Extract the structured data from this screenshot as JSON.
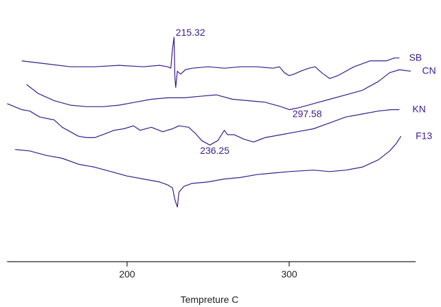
{
  "chart_data": {
    "type": "line",
    "title": "",
    "xlabel": "Tempreture C",
    "ylabel": "",
    "xlim": [
      126,
      378
    ],
    "x_ticks": [
      200,
      300
    ],
    "y_axis_shown": false,
    "grid": false,
    "line_color": "#3a1a8c",
    "axis_color": "#222222",
    "series": [
      {
        "name": "SB",
        "label_at_x": 374,
        "points": [
          [
            135,
            7.6
          ],
          [
            150,
            7.4
          ],
          [
            165,
            7.2
          ],
          [
            180,
            7.2
          ],
          [
            195,
            7.3
          ],
          [
            210,
            7.2
          ],
          [
            220,
            7.3
          ],
          [
            225,
            7.2
          ],
          [
            227,
            7.1
          ],
          [
            228,
            8.4
          ],
          [
            229,
            9.2
          ],
          [
            229.5,
            6.5
          ],
          [
            230,
            5.8
          ],
          [
            231,
            6.9
          ],
          [
            233,
            6.7
          ],
          [
            236,
            7.0
          ],
          [
            240,
            7.1
          ],
          [
            250,
            7.2
          ],
          [
            260,
            7.1
          ],
          [
            270,
            7.2
          ],
          [
            280,
            7.2
          ],
          [
            290,
            7.1
          ],
          [
            294,
            7.2
          ],
          [
            297,
            6.8
          ],
          [
            300,
            6.6
          ],
          [
            303,
            6.7
          ],
          [
            307,
            6.9
          ],
          [
            312,
            7.1
          ],
          [
            316,
            7.2
          ],
          [
            320,
            6.8
          ],
          [
            325,
            6.4
          ],
          [
            330,
            6.6
          ],
          [
            340,
            7.2
          ],
          [
            350,
            7.6
          ],
          [
            360,
            7.6
          ],
          [
            365,
            7.8
          ],
          [
            368,
            7.8
          ]
        ]
      },
      {
        "name": "CN",
        "label_at_x": 382,
        "points": [
          [
            138,
            6.0
          ],
          [
            145,
            5.4
          ],
          [
            155,
            4.9
          ],
          [
            165,
            4.6
          ],
          [
            175,
            4.5
          ],
          [
            185,
            4.5
          ],
          [
            195,
            4.6
          ],
          [
            205,
            4.8
          ],
          [
            215,
            5.0
          ],
          [
            225,
            5.1
          ],
          [
            235,
            5.1
          ],
          [
            245,
            5.2
          ],
          [
            255,
            5.3
          ],
          [
            265,
            5.0
          ],
          [
            275,
            4.9
          ],
          [
            285,
            4.8
          ],
          [
            295,
            4.5
          ],
          [
            300,
            4.3
          ],
          [
            305,
            4.4
          ],
          [
            315,
            4.7
          ],
          [
            325,
            5.0
          ],
          [
            335,
            5.3
          ],
          [
            345,
            5.6
          ],
          [
            355,
            6.2
          ],
          [
            362,
            6.8
          ],
          [
            368,
            7.0
          ],
          [
            375,
            6.9
          ]
        ]
      },
      {
        "name": "KN",
        "label_at_x": 376,
        "points": [
          [
            126,
            4.7
          ],
          [
            135,
            4.3
          ],
          [
            140,
            4.2
          ],
          [
            146,
            3.8
          ],
          [
            155,
            3.6
          ],
          [
            160,
            3.1
          ],
          [
            165,
            2.8
          ],
          [
            170,
            2.5
          ],
          [
            175,
            2.4
          ],
          [
            180,
            2.4
          ],
          [
            185,
            2.6
          ],
          [
            192,
            2.9
          ],
          [
            198,
            3.0
          ],
          [
            204,
            3.2
          ],
          [
            208,
            2.9
          ],
          [
            215,
            3.1
          ],
          [
            222,
            2.8
          ],
          [
            228,
            3.0
          ],
          [
            232,
            3.2
          ],
          [
            238,
            3.1
          ],
          [
            242,
            2.7
          ],
          [
            246,
            2.2
          ],
          [
            251,
            1.9
          ],
          [
            256,
            2.2
          ],
          [
            260,
            2.9
          ],
          [
            262,
            2.6
          ],
          [
            266,
            2.6
          ],
          [
            272,
            2.3
          ],
          [
            278,
            2.1
          ],
          [
            285,
            2.4
          ],
          [
            295,
            2.6
          ],
          [
            305,
            2.8
          ],
          [
            315,
            3.0
          ],
          [
            325,
            3.4
          ],
          [
            335,
            3.8
          ],
          [
            345,
            4.0
          ],
          [
            355,
            4.2
          ],
          [
            363,
            4.3
          ],
          [
            368,
            4.3
          ]
        ]
      },
      {
        "name": "F13",
        "label_at_x": 378,
        "points": [
          [
            131,
            1.6
          ],
          [
            140,
            1.5
          ],
          [
            150,
            1.2
          ],
          [
            160,
            1.0
          ],
          [
            170,
            0.6
          ],
          [
            180,
            0.4
          ],
          [
            190,
            0.1
          ],
          [
            200,
            -0.2
          ],
          [
            210,
            -0.4
          ],
          [
            220,
            -0.6
          ],
          [
            225,
            -0.8
          ],
          [
            228,
            -1.0
          ],
          [
            229.5,
            -1.8
          ],
          [
            231,
            -2.3
          ],
          [
            232,
            -1.3
          ],
          [
            235,
            -0.9
          ],
          [
            240,
            -0.7
          ],
          [
            250,
            -0.6
          ],
          [
            260,
            -0.4
          ],
          [
            270,
            -0.3
          ],
          [
            280,
            -0.1
          ],
          [
            290,
            0.0
          ],
          [
            300,
            0.1
          ],
          [
            315,
            0.2
          ],
          [
            325,
            0.1
          ],
          [
            335,
            0.2
          ],
          [
            345,
            0.4
          ],
          [
            355,
            0.9
          ],
          [
            362,
            1.5
          ],
          [
            366,
            2.0
          ],
          [
            369,
            2.5
          ]
        ]
      }
    ],
    "annotations": [
      {
        "text": "215.32",
        "x": 230,
        "y": 9.3
      },
      {
        "text": "297.58",
        "x": 302,
        "y": 3.8
      },
      {
        "text": "236.25",
        "x": 245,
        "y": 1.3
      }
    ]
  }
}
